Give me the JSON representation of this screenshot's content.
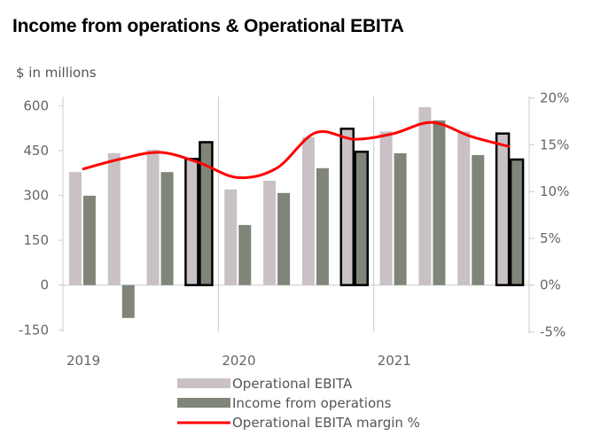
{
  "chart_data": {
    "type": "bar+line",
    "title": "Income from operations & Operational EBITA",
    "ylabel": "$ in millions",
    "years": [
      "2019",
      "2020",
      "2021"
    ],
    "quarters_per_year": 4,
    "ylim": [
      -150,
      600
    ],
    "yticks": [
      "600",
      "450",
      "300",
      "150",
      "0",
      "-150"
    ],
    "ytick_values": [
      600,
      450,
      300,
      150,
      0,
      -150
    ],
    "y2lim": [
      -5,
      20
    ],
    "y2ticks": [
      "20%",
      "15%",
      "10%",
      "5%",
      "0%",
      "-5%"
    ],
    "y2tick_values": [
      20,
      15,
      10,
      5,
      0,
      -5
    ],
    "series": [
      {
        "name": "Operational EBITA",
        "type": "bar",
        "axis": "left",
        "color": "#c9c1c5",
        "values": [
          378,
          441,
          453,
          422,
          320,
          349,
          495,
          523,
          514,
          595,
          514,
          507
        ]
      },
      {
        "name": "Income from operations",
        "type": "bar",
        "axis": "left",
        "color": "#7f8579",
        "values": [
          299,
          -110,
          378,
          478,
          201,
          308,
          391,
          446,
          441,
          551,
          435,
          420
        ]
      },
      {
        "name": "Operational EBITA margin %",
        "type": "line",
        "axis": "right",
        "color": "#ff0000",
        "values": [
          12.4,
          13.5,
          14.2,
          13.1,
          11.5,
          12.5,
          16.3,
          15.6,
          16.2,
          17.4,
          15.9,
          14.8
        ]
      }
    ],
    "highlighted_quarters": [
      4,
      8,
      12
    ],
    "grid": false,
    "legend": "bottom"
  }
}
